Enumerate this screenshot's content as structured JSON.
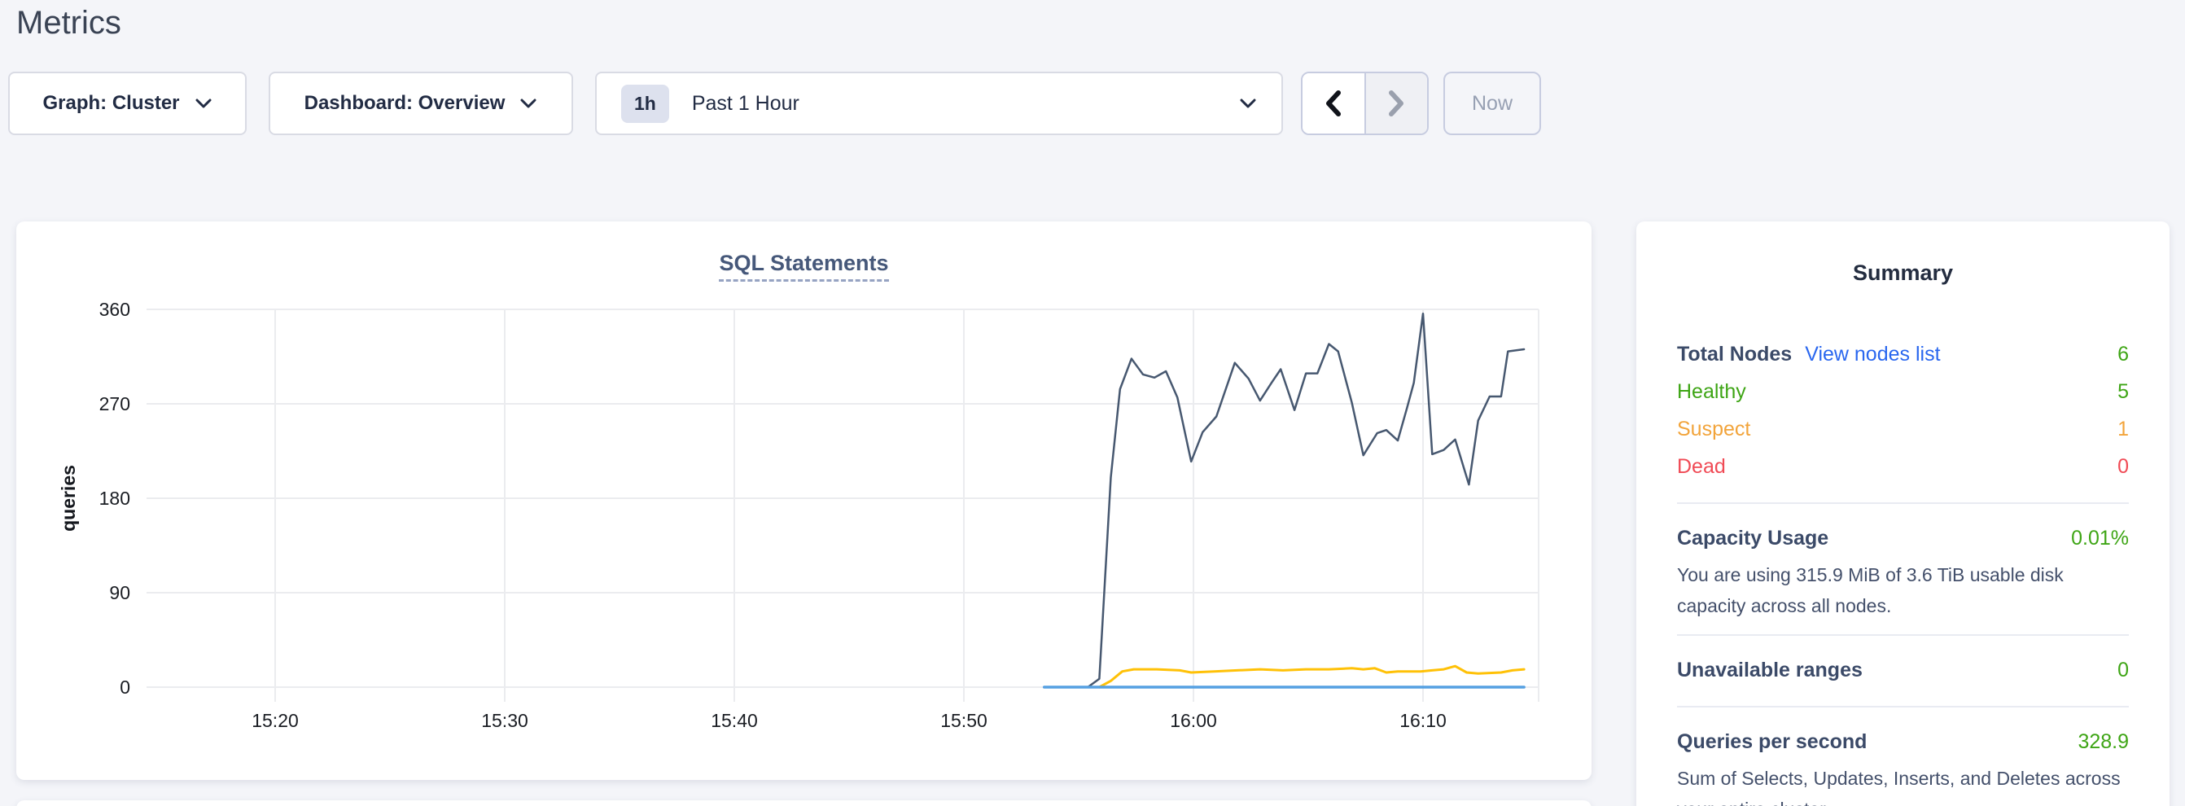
{
  "page": {
    "title": "Metrics",
    "background": "#f4f5f9"
  },
  "controls": {
    "graph_dropdown": {
      "label": "Graph: Cluster"
    },
    "dashboard_dropdown": {
      "label": "Dashboard: Overview"
    },
    "time_window": {
      "badge": "1h",
      "label": "Past 1 Hour"
    },
    "now_button": {
      "label": "Now"
    }
  },
  "chart_data": {
    "type": "line",
    "title": "SQL Statements",
    "xlabel": "",
    "ylabel": "queries",
    "ylim": [
      0,
      360
    ],
    "y_ticks": [
      0,
      90,
      180,
      270,
      360
    ],
    "x_unit": "minutes after 15:00",
    "xlim": [
      14.4,
      75.2
    ],
    "x_ticks": [
      {
        "t": 20,
        "label": "15:20"
      },
      {
        "t": 30,
        "label": "15:30"
      },
      {
        "t": 40,
        "label": "15:40"
      },
      {
        "t": 50,
        "label": "15:50"
      },
      {
        "t": 60,
        "label": "16:00"
      },
      {
        "t": 70,
        "label": "16:10"
      }
    ],
    "grid": true,
    "legend": "none",
    "grid_color": "#ebecef",
    "series": [
      {
        "name": "navy-line",
        "color": "#475870",
        "width": 2.5,
        "points": [
          [
            55.4,
            0
          ],
          [
            55.9,
            8
          ],
          [
            56.4,
            200
          ],
          [
            56.8,
            284
          ],
          [
            57.3,
            313
          ],
          [
            57.8,
            298
          ],
          [
            58.3,
            295
          ],
          [
            58.8,
            301
          ],
          [
            59.3,
            276
          ],
          [
            59.9,
            215
          ],
          [
            60.4,
            243
          ],
          [
            61.0,
            258
          ],
          [
            61.8,
            309
          ],
          [
            62.4,
            294
          ],
          [
            62.9,
            273
          ],
          [
            63.4,
            290
          ],
          [
            63.8,
            303
          ],
          [
            64.4,
            264
          ],
          [
            64.9,
            299
          ],
          [
            65.4,
            299
          ],
          [
            65.9,
            327
          ],
          [
            66.3,
            320
          ],
          [
            66.9,
            271
          ],
          [
            67.4,
            221
          ],
          [
            68.0,
            242
          ],
          [
            68.4,
            245
          ],
          [
            68.9,
            235
          ],
          [
            69.3,
            266
          ],
          [
            69.6,
            290
          ],
          [
            70.0,
            356
          ],
          [
            70.4,
            222
          ],
          [
            70.9,
            226
          ],
          [
            71.4,
            236
          ],
          [
            72.0,
            193
          ],
          [
            72.4,
            254
          ],
          [
            72.9,
            277
          ],
          [
            73.4,
            277
          ],
          [
            73.7,
            320
          ],
          [
            74.4,
            322
          ]
        ]
      },
      {
        "name": "yellow-line",
        "color": "#ffc107",
        "width": 3,
        "points": [
          [
            55.9,
            0
          ],
          [
            56.4,
            6
          ],
          [
            56.9,
            15
          ],
          [
            57.4,
            17
          ],
          [
            58.4,
            17
          ],
          [
            59.4,
            16
          ],
          [
            59.9,
            14
          ],
          [
            60.9,
            15
          ],
          [
            61.9,
            16
          ],
          [
            62.9,
            17
          ],
          [
            63.9,
            16
          ],
          [
            64.9,
            17
          ],
          [
            65.9,
            17
          ],
          [
            66.9,
            18
          ],
          [
            67.4,
            17
          ],
          [
            67.9,
            18
          ],
          [
            68.4,
            14
          ],
          [
            68.9,
            15
          ],
          [
            69.9,
            15
          ],
          [
            70.4,
            16
          ],
          [
            70.9,
            17
          ],
          [
            71.4,
            20
          ],
          [
            71.9,
            14
          ],
          [
            72.4,
            13
          ],
          [
            73.4,
            14
          ],
          [
            73.9,
            16
          ],
          [
            74.4,
            17
          ]
        ]
      },
      {
        "name": "blue-line",
        "color": "#55a0e2",
        "width": 3.5,
        "points": [
          [
            53.5,
            0
          ],
          [
            74.4,
            0
          ]
        ]
      }
    ]
  },
  "summary": {
    "title": "Summary",
    "nodes": {
      "label": "Total Nodes",
      "link": "View nodes list",
      "value": "6",
      "rows": [
        {
          "label": "Healthy",
          "value": "5",
          "color": "#3ea515"
        },
        {
          "label": "Suspect",
          "value": "1",
          "color": "#f2a43b"
        },
        {
          "label": "Dead",
          "value": "0",
          "color": "#f04a55"
        }
      ]
    },
    "capacity": {
      "label": "Capacity Usage",
      "value": "0.01%",
      "description": "You are using 315.9 MiB of 3.6 TiB usable disk capacity across all nodes."
    },
    "unavailable": {
      "label": "Unavailable ranges",
      "value": "0"
    },
    "qps": {
      "label": "Queries per second",
      "value": "328.9",
      "description": "Sum of Selects, Updates, Inserts, and Deletes across your entire cluster."
    },
    "accent_colors": {
      "green": "#3ea515",
      "orange": "#f2a43b",
      "red": "#f04a55",
      "link_blue": "#2a67ef"
    }
  }
}
